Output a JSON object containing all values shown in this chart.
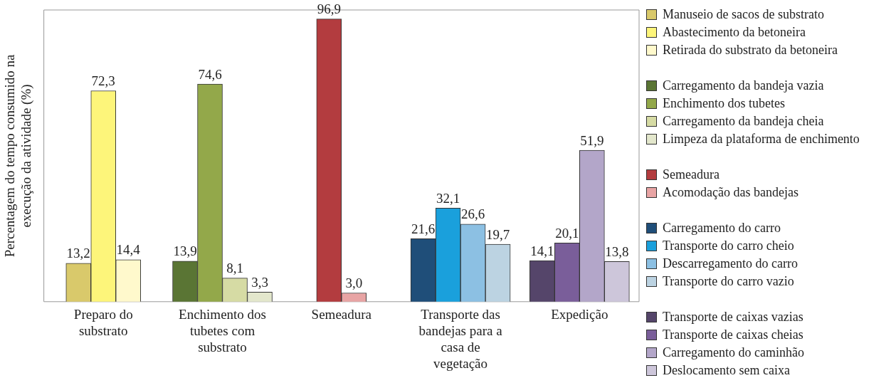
{
  "chart_data": {
    "type": "bar",
    "ylabel": "Percentagem do tempo consumido na execução da atividade (%)",
    "categories": [
      "Preparo do substrato",
      "Enchimento dos tubetes com substrato",
      "Semeadura",
      "Transporte das bandejas para a casa de vegetação",
      "Expedição"
    ],
    "legend": "right",
    "tick_labels": "x",
    "grid": false,
    "series": [
      {
        "name": "Manuseio de sacos de substrato",
        "color": "#d9c96b",
        "values": [
          13.2,
          null,
          null,
          null,
          null
        ],
        "value_labels": [
          "13,2",
          null,
          null,
          null,
          null
        ]
      },
      {
        "name": "Abastecimento da betoneira",
        "color": "#fdf57a",
        "values": [
          72.3,
          null,
          null,
          null,
          null
        ],
        "value_labels": [
          "72,3",
          null,
          null,
          null,
          null
        ]
      },
      {
        "name": "Retirada do substrato da betoneira",
        "color": "#fff9cc",
        "values": [
          14.4,
          null,
          null,
          null,
          null
        ],
        "value_labels": [
          "14,4",
          null,
          null,
          null,
          null
        ]
      },
      {
        "name": "Carregamento da bandeja vazia",
        "color": "#5a7534",
        "values": [
          null,
          13.9,
          null,
          null,
          null
        ],
        "value_labels": [
          null,
          "13,9",
          null,
          null,
          null
        ]
      },
      {
        "name": "Enchimento dos tubetes",
        "color": "#93a84a",
        "values": [
          null,
          74.6,
          null,
          null,
          null
        ],
        "value_labels": [
          null,
          "74,6",
          null,
          null,
          null
        ]
      },
      {
        "name": "Carregamento da bandeja cheia",
        "color": "#d6dba4",
        "values": [
          null,
          8.1,
          null,
          null,
          null
        ],
        "value_labels": [
          null,
          "8,1",
          null,
          null,
          null
        ]
      },
      {
        "name": "Limpeza da plataforma de enchimento",
        "color": "#e3e7cc",
        "values": [
          null,
          3.3,
          null,
          null,
          null
        ],
        "value_labels": [
          null,
          "3,3",
          null,
          null,
          null
        ]
      },
      {
        "name": "Semeadura",
        "color": "#b33c3f",
        "values": [
          null,
          null,
          96.9,
          null,
          null
        ],
        "value_labels": [
          null,
          null,
          "96,9",
          null,
          null
        ]
      },
      {
        "name": "Acomodação das bandejas",
        "color": "#e8a4a4",
        "values": [
          null,
          null,
          3.0,
          null,
          null
        ],
        "value_labels": [
          null,
          null,
          "3,0",
          null,
          null
        ]
      },
      {
        "name": "Carregamento do carro",
        "color": "#1f4e79",
        "values": [
          null,
          null,
          null,
          21.6,
          null
        ],
        "value_labels": [
          null,
          null,
          null,
          "21,6",
          null
        ]
      },
      {
        "name": "Transporte do carro cheio",
        "color": "#1aa0dc",
        "values": [
          null,
          null,
          null,
          32.1,
          null
        ],
        "value_labels": [
          null,
          null,
          null,
          "32,1",
          null
        ]
      },
      {
        "name": "Descarregamento do carro",
        "color": "#8cc0e3",
        "values": [
          null,
          null,
          null,
          26.6,
          null
        ],
        "value_labels": [
          null,
          null,
          null,
          "26,6",
          null
        ]
      },
      {
        "name": "Transporte do carro vazio",
        "color": "#bcd3e2",
        "values": [
          null,
          null,
          null,
          19.7,
          null
        ],
        "value_labels": [
          null,
          null,
          null,
          "19,7",
          null
        ]
      },
      {
        "name": "Transporte de caixas vazias",
        "color": "#55456a",
        "values": [
          null,
          null,
          null,
          null,
          14.1
        ],
        "value_labels": [
          null,
          null,
          null,
          null,
          "14,1"
        ]
      },
      {
        "name": "Transporte de caixas cheias",
        "color": "#7a5e9a",
        "values": [
          null,
          null,
          null,
          null,
          20.1
        ],
        "value_labels": [
          null,
          null,
          null,
          null,
          "20,1"
        ]
      },
      {
        "name": "Carregamento do caminhão",
        "color": "#b3a6c9",
        "values": [
          null,
          null,
          null,
          null,
          51.9
        ],
        "value_labels": [
          null,
          null,
          null,
          null,
          "51,9"
        ]
      },
      {
        "name": "Deslocamento sem caixa",
        "color": "#cdc6da",
        "values": [
          null,
          null,
          null,
          null,
          13.8
        ],
        "value_labels": [
          null,
          null,
          null,
          null,
          "13,8"
        ]
      }
    ]
  }
}
